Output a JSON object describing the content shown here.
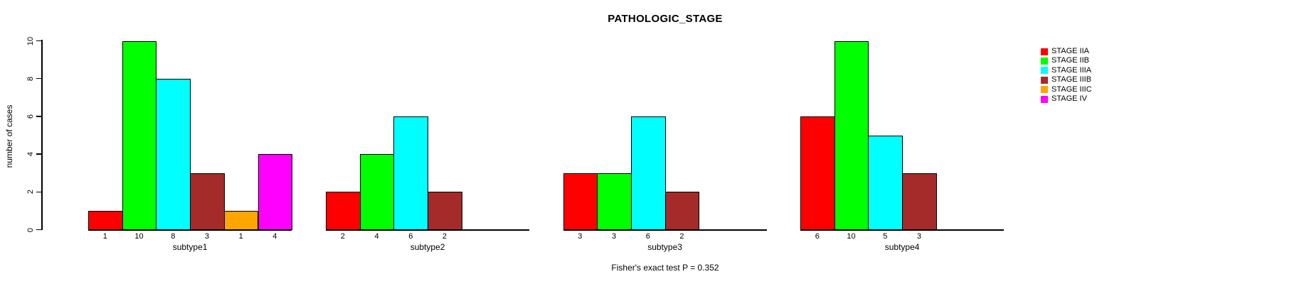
{
  "chart_data": {
    "type": "bar",
    "title": "PATHOLOGIC_STAGE",
    "ylabel": "number of cases",
    "ylim": [
      0,
      10
    ],
    "yticks": [
      0,
      2,
      4,
      6,
      8,
      10
    ],
    "footnote": "Fisher's exact test P = 0.352",
    "grid": false,
    "legend_position": "top-right",
    "legend": [
      {
        "label": "STAGE IIA",
        "color": "#FF0000"
      },
      {
        "label": "STAGE IIB",
        "color": "#00FF00"
      },
      {
        "label": "STAGE IIIA",
        "color": "#00FFFF"
      },
      {
        "label": "STAGE IIIB",
        "color": "#A52A2A"
      },
      {
        "label": "STAGE IIIC",
        "color": "#FFA500"
      },
      {
        "label": "STAGE IV",
        "color": "#FF00FF"
      }
    ],
    "slots_per_group": 6,
    "groups": [
      {
        "label": "subtype1",
        "values": [
          1,
          10,
          8,
          3,
          1,
          4
        ],
        "bar_labels": [
          "1",
          "10",
          "8",
          "3",
          "1",
          "4"
        ]
      },
      {
        "label": "subtype2",
        "values": [
          2,
          4,
          6,
          2
        ],
        "bar_labels": [
          "2",
          "4",
          "6",
          "2"
        ]
      },
      {
        "label": "subtype3",
        "values": [
          3,
          3,
          6,
          2
        ],
        "bar_labels": [
          "3",
          "3",
          "6",
          "2"
        ]
      },
      {
        "label": "subtype4",
        "values": [
          6,
          10,
          5,
          3
        ],
        "bar_labels": [
          "6",
          "10",
          "5",
          "3"
        ]
      }
    ]
  }
}
